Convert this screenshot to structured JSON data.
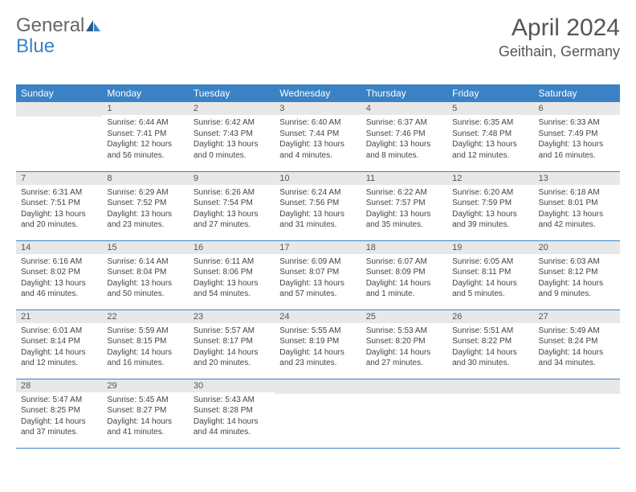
{
  "logo": {
    "text1": "General",
    "text2": "Blue"
  },
  "title": "April 2024",
  "location": "Geithain, Germany",
  "colors": {
    "header_bg": "#3b82c4",
    "header_fg": "#ffffff",
    "daybar_bg": "#e8e8e8",
    "text": "#555555",
    "border": "#3b82c4"
  },
  "weekdays": [
    "Sunday",
    "Monday",
    "Tuesday",
    "Wednesday",
    "Thursday",
    "Friday",
    "Saturday"
  ],
  "weeks": [
    [
      {
        "n": "",
        "sr": "",
        "ss": "",
        "dl": ""
      },
      {
        "n": "1",
        "sr": "Sunrise: 6:44 AM",
        "ss": "Sunset: 7:41 PM",
        "dl": "Daylight: 12 hours and 56 minutes."
      },
      {
        "n": "2",
        "sr": "Sunrise: 6:42 AM",
        "ss": "Sunset: 7:43 PM",
        "dl": "Daylight: 13 hours and 0 minutes."
      },
      {
        "n": "3",
        "sr": "Sunrise: 6:40 AM",
        "ss": "Sunset: 7:44 PM",
        "dl": "Daylight: 13 hours and 4 minutes."
      },
      {
        "n": "4",
        "sr": "Sunrise: 6:37 AM",
        "ss": "Sunset: 7:46 PM",
        "dl": "Daylight: 13 hours and 8 minutes."
      },
      {
        "n": "5",
        "sr": "Sunrise: 6:35 AM",
        "ss": "Sunset: 7:48 PM",
        "dl": "Daylight: 13 hours and 12 minutes."
      },
      {
        "n": "6",
        "sr": "Sunrise: 6:33 AM",
        "ss": "Sunset: 7:49 PM",
        "dl": "Daylight: 13 hours and 16 minutes."
      }
    ],
    [
      {
        "n": "7",
        "sr": "Sunrise: 6:31 AM",
        "ss": "Sunset: 7:51 PM",
        "dl": "Daylight: 13 hours and 20 minutes."
      },
      {
        "n": "8",
        "sr": "Sunrise: 6:29 AM",
        "ss": "Sunset: 7:52 PM",
        "dl": "Daylight: 13 hours and 23 minutes."
      },
      {
        "n": "9",
        "sr": "Sunrise: 6:26 AM",
        "ss": "Sunset: 7:54 PM",
        "dl": "Daylight: 13 hours and 27 minutes."
      },
      {
        "n": "10",
        "sr": "Sunrise: 6:24 AM",
        "ss": "Sunset: 7:56 PM",
        "dl": "Daylight: 13 hours and 31 minutes."
      },
      {
        "n": "11",
        "sr": "Sunrise: 6:22 AM",
        "ss": "Sunset: 7:57 PM",
        "dl": "Daylight: 13 hours and 35 minutes."
      },
      {
        "n": "12",
        "sr": "Sunrise: 6:20 AM",
        "ss": "Sunset: 7:59 PM",
        "dl": "Daylight: 13 hours and 39 minutes."
      },
      {
        "n": "13",
        "sr": "Sunrise: 6:18 AM",
        "ss": "Sunset: 8:01 PM",
        "dl": "Daylight: 13 hours and 42 minutes."
      }
    ],
    [
      {
        "n": "14",
        "sr": "Sunrise: 6:16 AM",
        "ss": "Sunset: 8:02 PM",
        "dl": "Daylight: 13 hours and 46 minutes."
      },
      {
        "n": "15",
        "sr": "Sunrise: 6:14 AM",
        "ss": "Sunset: 8:04 PM",
        "dl": "Daylight: 13 hours and 50 minutes."
      },
      {
        "n": "16",
        "sr": "Sunrise: 6:11 AM",
        "ss": "Sunset: 8:06 PM",
        "dl": "Daylight: 13 hours and 54 minutes."
      },
      {
        "n": "17",
        "sr": "Sunrise: 6:09 AM",
        "ss": "Sunset: 8:07 PM",
        "dl": "Daylight: 13 hours and 57 minutes."
      },
      {
        "n": "18",
        "sr": "Sunrise: 6:07 AM",
        "ss": "Sunset: 8:09 PM",
        "dl": "Daylight: 14 hours and 1 minute."
      },
      {
        "n": "19",
        "sr": "Sunrise: 6:05 AM",
        "ss": "Sunset: 8:11 PM",
        "dl": "Daylight: 14 hours and 5 minutes."
      },
      {
        "n": "20",
        "sr": "Sunrise: 6:03 AM",
        "ss": "Sunset: 8:12 PM",
        "dl": "Daylight: 14 hours and 9 minutes."
      }
    ],
    [
      {
        "n": "21",
        "sr": "Sunrise: 6:01 AM",
        "ss": "Sunset: 8:14 PM",
        "dl": "Daylight: 14 hours and 12 minutes."
      },
      {
        "n": "22",
        "sr": "Sunrise: 5:59 AM",
        "ss": "Sunset: 8:15 PM",
        "dl": "Daylight: 14 hours and 16 minutes."
      },
      {
        "n": "23",
        "sr": "Sunrise: 5:57 AM",
        "ss": "Sunset: 8:17 PM",
        "dl": "Daylight: 14 hours and 20 minutes."
      },
      {
        "n": "24",
        "sr": "Sunrise: 5:55 AM",
        "ss": "Sunset: 8:19 PM",
        "dl": "Daylight: 14 hours and 23 minutes."
      },
      {
        "n": "25",
        "sr": "Sunrise: 5:53 AM",
        "ss": "Sunset: 8:20 PM",
        "dl": "Daylight: 14 hours and 27 minutes."
      },
      {
        "n": "26",
        "sr": "Sunrise: 5:51 AM",
        "ss": "Sunset: 8:22 PM",
        "dl": "Daylight: 14 hours and 30 minutes."
      },
      {
        "n": "27",
        "sr": "Sunrise: 5:49 AM",
        "ss": "Sunset: 8:24 PM",
        "dl": "Daylight: 14 hours and 34 minutes."
      }
    ],
    [
      {
        "n": "28",
        "sr": "Sunrise: 5:47 AM",
        "ss": "Sunset: 8:25 PM",
        "dl": "Daylight: 14 hours and 37 minutes."
      },
      {
        "n": "29",
        "sr": "Sunrise: 5:45 AM",
        "ss": "Sunset: 8:27 PM",
        "dl": "Daylight: 14 hours and 41 minutes."
      },
      {
        "n": "30",
        "sr": "Sunrise: 5:43 AM",
        "ss": "Sunset: 8:28 PM",
        "dl": "Daylight: 14 hours and 44 minutes."
      },
      {
        "n": "",
        "sr": "",
        "ss": "",
        "dl": ""
      },
      {
        "n": "",
        "sr": "",
        "ss": "",
        "dl": ""
      },
      {
        "n": "",
        "sr": "",
        "ss": "",
        "dl": ""
      },
      {
        "n": "",
        "sr": "",
        "ss": "",
        "dl": ""
      }
    ]
  ]
}
